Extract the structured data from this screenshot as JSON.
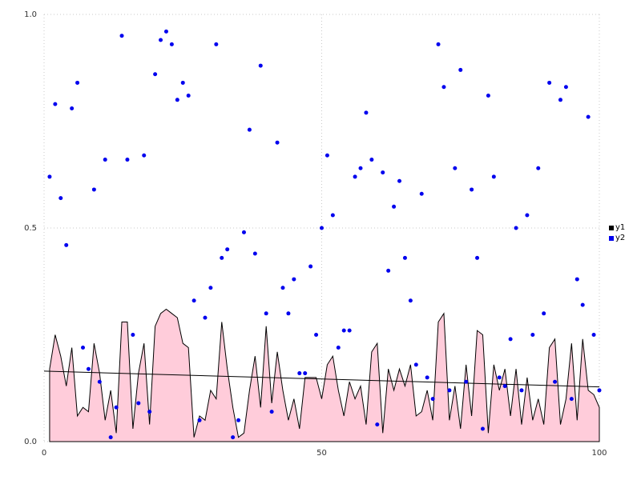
{
  "chart_data": {
    "type": "area+scatter",
    "title": "",
    "xlabel": "",
    "ylabel": "",
    "xlim": [
      0,
      100
    ],
    "ylim": [
      0,
      1
    ],
    "xticks": [
      0,
      50,
      100
    ],
    "xtick_labels": [
      "0",
      "50",
      "100"
    ],
    "yticks": [
      0,
      0.5,
      1
    ],
    "ytick_labels": [
      "0.0",
      "0.5",
      "1.0"
    ],
    "grid": "dotted",
    "grid_color": "#c9c9c9",
    "legend_position": "right-outside",
    "x_start": 1,
    "x_step": 1,
    "n_points": 100,
    "series": [
      {
        "name": "y1",
        "type": "area",
        "color": "#000000",
        "fill": "#ffccda",
        "values": [
          0.17,
          0.25,
          0.2,
          0.13,
          0.22,
          0.06,
          0.08,
          0.07,
          0.23,
          0.16,
          0.05,
          0.12,
          0.02,
          0.28,
          0.28,
          0.03,
          0.16,
          0.23,
          0.04,
          0.27,
          0.3,
          0.31,
          0.3,
          0.29,
          0.23,
          0.22,
          0.01,
          0.06,
          0.05,
          0.12,
          0.1,
          0.28,
          0.17,
          0.08,
          0.01,
          0.02,
          0.12,
          0.2,
          0.08,
          0.27,
          0.09,
          0.21,
          0.12,
          0.05,
          0.1,
          0.03,
          0.15,
          0.15,
          0.15,
          0.1,
          0.18,
          0.2,
          0.12,
          0.06,
          0.14,
          0.1,
          0.13,
          0.04,
          0.21,
          0.23,
          0.02,
          0.17,
          0.12,
          0.17,
          0.13,
          0.18,
          0.06,
          0.07,
          0.12,
          0.05,
          0.28,
          0.3,
          0.05,
          0.13,
          0.03,
          0.18,
          0.06,
          0.26,
          0.25,
          0.02,
          0.18,
          0.12,
          0.17,
          0.06,
          0.17,
          0.04,
          0.15,
          0.05,
          0.1,
          0.04,
          0.22,
          0.24,
          0.04,
          0.1,
          0.23,
          0.05,
          0.24,
          0.12,
          0.11,
          0.08
        ]
      },
      {
        "name": "y2",
        "type": "scatter",
        "color": "#0000ee",
        "values": [
          0.62,
          0.79,
          0.57,
          0.46,
          0.78,
          0.84,
          0.22,
          0.17,
          0.59,
          0.14,
          0.66,
          0.01,
          0.08,
          0.95,
          0.66,
          0.25,
          0.09,
          0.67,
          0.07,
          0.86,
          0.94,
          0.96,
          0.93,
          0.8,
          0.84,
          0.81,
          0.33,
          0.05,
          0.29,
          0.36,
          0.93,
          0.43,
          0.45,
          0.01,
          0.05,
          0.49,
          0.73,
          0.44,
          0.88,
          0.3,
          0.07,
          0.7,
          0.36,
          0.3,
          0.38,
          0.16,
          0.16,
          0.41,
          0.25,
          0.5,
          0.67,
          0.53,
          0.22,
          0.26,
          0.26,
          0.62,
          0.64,
          0.77,
          0.66,
          0.04,
          0.63,
          0.4,
          0.55,
          0.61,
          0.43,
          0.33,
          0.18,
          0.58,
          0.15,
          0.1,
          0.93,
          0.83,
          0.12,
          0.64,
          0.87,
          0.14,
          0.59,
          0.43,
          0.03,
          0.81,
          0.62,
          0.15,
          0.13,
          0.24,
          0.5,
          0.12,
          0.53,
          0.25,
          0.64,
          0.3,
          0.84,
          0.14,
          0.8,
          0.83,
          0.1,
          0.38,
          0.32,
          0.76,
          0.25,
          0.12
        ]
      }
    ],
    "trend_line": {
      "y_start": 0.165,
      "y_end": 0.128,
      "color": "#000000"
    }
  }
}
